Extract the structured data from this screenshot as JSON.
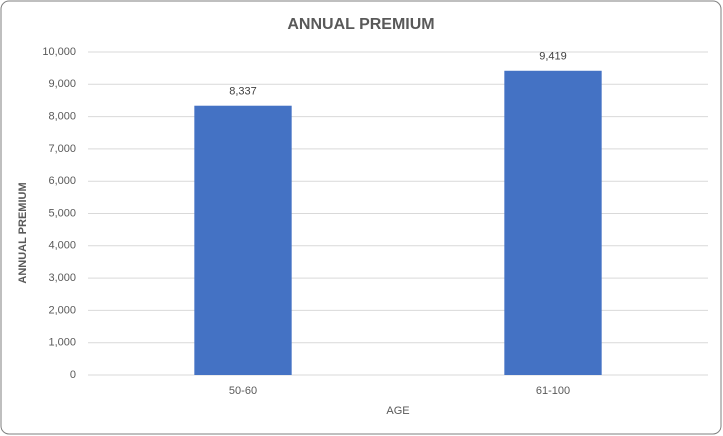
{
  "chart_data": {
    "type": "bar",
    "title": "ANNUAL PREMIUM",
    "x_label": "AGE",
    "y_label": "ANNUAL PREMIUM",
    "categories": [
      "50-60",
      "61-100"
    ],
    "values": [
      8337,
      9419
    ],
    "value_labels": [
      "8,337",
      "9,419"
    ],
    "color": "#4472c4",
    "ylim": [
      0,
      10000
    ],
    "yticks": [
      0,
      {
        "value": 1000,
        "label": "1,000"
      },
      {
        "value": 2000,
        "label": "2,000"
      },
      {
        "value": 3000,
        "label": "3,000"
      },
      {
        "value": 4000,
        "label": "4,000"
      },
      {
        "value": 5000,
        "label": "5,000"
      },
      {
        "value": 6000,
        "label": "6,000"
      },
      {
        "value": 7000,
        "label": "7,000"
      },
      {
        "value": 8000,
        "label": "8,000"
      },
      {
        "value": 9000,
        "label": "9,000"
      },
      {
        "value": 10000,
        "label": "10,000"
      }
    ],
    "grid": true
  }
}
